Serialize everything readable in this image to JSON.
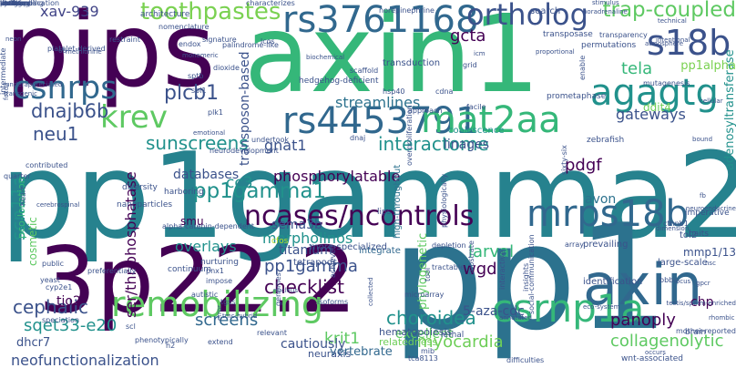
{
  "words": [
    {
      "text": "pp1gamma2",
      "color": "#26828e"
    },
    {
      "text": "pp1",
      "color": "#2c728e"
    },
    {
      "text": "axin1",
      "color": "#35b779"
    },
    {
      "text": "3p22.2",
      "color": "#440154"
    },
    {
      "text": "pips",
      "color": "#440154"
    },
    {
      "text": "rs3761168",
      "color": "#31688e"
    },
    {
      "text": "rs4453791",
      "color": "#31688e"
    },
    {
      "text": "agagtg",
      "color": "#21918c"
    },
    {
      "text": "axin",
      "color": "#31688e"
    },
    {
      "text": "csrnp1a",
      "color": "#35b779"
    },
    {
      "text": "remobilizing",
      "color": "#5ec962"
    },
    {
      "text": "mrps18b",
      "color": "#31688e"
    },
    {
      "text": "mat2aa",
      "color": "#35b779"
    },
    {
      "text": "s18b",
      "color": "#3b528b"
    },
    {
      "text": "ortholog",
      "color": "#3b528b"
    },
    {
      "text": "ncases/ncontrols",
      "color": "#440154"
    },
    {
      "text": "trap-coupled",
      "color": "#5ec962"
    },
    {
      "text": "csnrps",
      "color": "#31688e"
    },
    {
      "text": "toothpastes",
      "color": "#7ad151"
    },
    {
      "text": "krev",
      "color": "#5ec962"
    },
    {
      "text": "dnajb6b",
      "color": "#3b528b"
    },
    {
      "text": "xav-939",
      "color": "#414487"
    },
    {
      "text": "plcb1",
      "color": "#3b528b"
    },
    {
      "text": "pp1gamma1",
      "color": "#21918c"
    },
    {
      "text": "pp1gamma",
      "color": "#3b528b"
    },
    {
      "text": "interactome",
      "color": "#21918c"
    },
    {
      "text": "gcta",
      "color": "#440154"
    },
    {
      "text": "tela",
      "color": "#35b779"
    },
    {
      "text": "gateways",
      "color": "#3b528b"
    },
    {
      "text": "streamlines",
      "color": "#2c728e"
    },
    {
      "text": "sunscreens",
      "color": "#21918c"
    },
    {
      "text": "neu1",
      "color": "#3b528b"
    },
    {
      "text": "gnat1",
      "color": "#3b528b"
    },
    {
      "text": "linages",
      "color": "#3b528b"
    },
    {
      "text": "pdgf",
      "color": "#440154"
    },
    {
      "text": "cc3",
      "color": "#21918c"
    },
    {
      "text": "transposon-based",
      "color": "#3b528b"
    },
    {
      "text": "phosphorylatable",
      "color": "#440154"
    },
    {
      "text": "databases",
      "color": "#3b528b"
    },
    {
      "text": "checklist",
      "color": "#440154"
    },
    {
      "text": "morpholinos",
      "color": "#21918c"
    },
    {
      "text": "larval",
      "color": "#35b779"
    },
    {
      "text": "wgd",
      "color": "#440154"
    },
    {
      "text": "cephalic",
      "color": "#3b528b"
    },
    {
      "text": "sqet33-e20",
      "color": "#21918c"
    },
    {
      "text": "screens",
      "color": "#31688e"
    },
    {
      "text": "choroidea",
      "color": "#21918c"
    },
    {
      "text": "myocardia",
      "color": "#6ece58"
    },
    {
      "text": "collagenolytic",
      "color": "#5ec962"
    },
    {
      "text": "panoply",
      "color": "#440154"
    },
    {
      "text": "krit1",
      "color": "#5ec962"
    },
    {
      "text": "neofunctionalization",
      "color": "#3b528b"
    },
    {
      "text": "scn11a",
      "color": "#21918c"
    },
    {
      "text": "overlays",
      "color": "#21918c"
    },
    {
      "text": "ser/thr-phosphatase",
      "color": "#440154"
    },
    {
      "text": "sema3b",
      "color": "#3b528b"
    },
    {
      "text": "titanium",
      "color": "#3b528b"
    },
    {
      "text": "avon",
      "color": "#2c728e"
    },
    {
      "text": "adenosyltransferase",
      "color": "#21918c"
    },
    {
      "text": "excellent",
      "color": "#5ec962"
    },
    {
      "text": "cautiously",
      "color": "#3b528b"
    },
    {
      "text": "vertebrate",
      "color": "#31688e"
    },
    {
      "text": "5-aza-cdc",
      "color": "#3b528b"
    },
    {
      "text": "chp",
      "color": "#440154"
    },
    {
      "text": "mmp1/13",
      "color": "#3b528b"
    },
    {
      "text": "phylogenetic",
      "color": "#5ec962"
    },
    {
      "text": "smu",
      "color": "#440154"
    },
    {
      "text": "tio2",
      "color": "#440154"
    },
    {
      "text": "dhcr7",
      "color": "#3b528b"
    },
    {
      "text": "pco-location",
      "color": "#35b779"
    },
    {
      "text": "cosmetic",
      "color": "#5ec962"
    },
    {
      "text": "pp1alpha",
      "color": "#7ad151"
    },
    {
      "text": "ddit4",
      "color": "#6ece58"
    },
    {
      "text": "hematopoiesis",
      "color": "#3b528b"
    },
    {
      "text": "relatedness",
      "color": "#6ece58"
    },
    {
      "text": "neuraxis",
      "color": "#3b528b"
    },
    {
      "text": "transduction",
      "color": "#3b528b"
    },
    {
      "text": "coalescence",
      "color": "#21918c"
    },
    {
      "text": "high-throughput",
      "color": "#2c728e"
    },
    {
      "text": "search",
      "color": "#3b528b"
    },
    {
      "text": "tol2",
      "color": "#3b528b"
    },
    {
      "text": "prevailing",
      "color": "#3b528b"
    },
    {
      "text": "identification",
      "color": "#3b528b"
    },
    {
      "text": "integrate",
      "color": "#31688e"
    },
    {
      "text": "tetrapods",
      "color": "#3b528b"
    },
    {
      "text": "lethal",
      "color": "#3b528b"
    },
    {
      "text": "cfos",
      "color": "#b5de2b"
    },
    {
      "text": "more-specialized",
      "color": "#3b528b"
    },
    {
      "text": "lips",
      "color": "#3b528b"
    },
    {
      "text": "nurturing",
      "color": "#3b528b"
    },
    {
      "text": "continuum",
      "color": "#3b528b"
    },
    {
      "text": "diversity",
      "color": "#3b528b"
    },
    {
      "text": "nanoparticles",
      "color": "#3b528b"
    },
    {
      "text": "harboring",
      "color": "#3b528b"
    },
    {
      "text": "architecture",
      "color": "#3b528b"
    },
    {
      "text": "nomenclature",
      "color": "#3b528b"
    },
    {
      "text": "endox",
      "color": "#3b528b"
    },
    {
      "text": "signature",
      "color": "#3b528b"
    },
    {
      "text": "hedgehog-deficient",
      "color": "#3b528b"
    },
    {
      "text": "hsp40",
      "color": "#3b528b"
    },
    {
      "text": "cdna",
      "color": "#3b528b"
    },
    {
      "text": "approach",
      "color": "#3b528b"
    },
    {
      "text": "isoforms",
      "color": "#3b528b"
    },
    {
      "text": "insights",
      "color": "#3b528b"
    },
    {
      "text": "microarray",
      "color": "#3b528b"
    },
    {
      "text": "substrate",
      "color": "#3b528b"
    },
    {
      "text": "large-scale",
      "color": "#3b528b"
    },
    {
      "text": "imperative",
      "color": "#3b528b"
    },
    {
      "text": "baits",
      "color": "#3b528b"
    },
    {
      "text": "brain",
      "color": "#3b528b"
    },
    {
      "text": "zebrafish",
      "color": "#3b528b"
    },
    {
      "text": "permutations",
      "color": "#3b528b"
    },
    {
      "text": "transparency",
      "color": "#3b528b"
    },
    {
      "text": "transposase",
      "color": "#3b528b"
    },
    {
      "text": "prometaphase",
      "color": "#3b528b"
    },
    {
      "text": "facile",
      "color": "#3b528b"
    },
    {
      "text": "enable",
      "color": "#3b528b"
    },
    {
      "text": "sixty-six",
      "color": "#3b528b"
    },
    {
      "text": "overproliferation",
      "color": "#3b528b"
    },
    {
      "text": "depletion",
      "color": "#3b528b"
    },
    {
      "text": "tractable",
      "color": "#3b528b"
    },
    {
      "text": "physiologically",
      "color": "#3b528b"
    },
    {
      "text": "social-communication",
      "color": "#3b528b"
    },
    {
      "text": "wnt-associated",
      "color": "#3b528b"
    },
    {
      "text": "difficulties",
      "color": "#3b528b"
    },
    {
      "text": "tca8113",
      "color": "#3b528b"
    },
    {
      "text": "preferentially",
      "color": "#3b528b"
    },
    {
      "text": "speciation",
      "color": "#3b528b"
    },
    {
      "text": "public",
      "color": "#3b528b"
    },
    {
      "text": "yeast",
      "color": "#3b528b"
    },
    {
      "text": "cyp2e1",
      "color": "#3b528b"
    },
    {
      "text": "autistic",
      "color": "#3b528b"
    },
    {
      "text": "extend",
      "color": "#3b528b"
    },
    {
      "text": "relevant",
      "color": "#3b528b"
    },
    {
      "text": "h2",
      "color": "#3b528b"
    },
    {
      "text": "phenotypically",
      "color": "#3b528b"
    },
    {
      "text": "quarter",
      "color": "#3b528b"
    },
    {
      "text": "contributed",
      "color": "#3b528b"
    },
    {
      "text": "neurodevelopment",
      "color": "#3b528b"
    },
    {
      "text": "undertook",
      "color": "#3b528b"
    },
    {
      "text": "tgss",
      "color": "#3b528b"
    },
    {
      "text": "intermediate",
      "color": "#3b528b"
    },
    {
      "text": "underappreciated",
      "color": "#3b528b"
    },
    {
      "text": "platelet-derived",
      "color": "#3b528b"
    },
    {
      "text": "foxd3",
      "color": "#3b528b"
    },
    {
      "text": "transgenic",
      "color": "#3b528b"
    },
    {
      "text": "dioxide",
      "color": "#3b528b"
    },
    {
      "text": "palindrome-like",
      "color": "#3b528b"
    },
    {
      "text": "characterizes",
      "color": "#3b528b"
    },
    {
      "text": "stimulus",
      "color": "#3b528b"
    },
    {
      "text": "noradrenaline",
      "color": "#3b528b"
    },
    {
      "text": "restraint",
      "color": "#3b528b"
    },
    {
      "text": "alpha-catenin-dependent",
      "color": "#3b528b"
    },
    {
      "text": "spi1",
      "color": "#3b528b"
    },
    {
      "text": "6b",
      "color": "#3b528b"
    },
    {
      "text": "neon",
      "color": "#3b528b"
    },
    {
      "text": "vector",
      "color": "#3b528b"
    },
    {
      "text": "genomes",
      "color": "#3b528b"
    },
    {
      "text": "scl",
      "color": "#3b528b"
    },
    {
      "text": "sptb",
      "color": "#3b528b"
    },
    {
      "text": "plk1",
      "color": "#3b528b"
    },
    {
      "text": "mib",
      "color": "#3b528b"
    },
    {
      "text": "grid",
      "color": "#3b528b"
    },
    {
      "text": "tool",
      "color": "#3b528b"
    },
    {
      "text": "bbb",
      "color": "#3b528b"
    },
    {
      "text": "ctnnb1",
      "color": "#3b528b"
    },
    {
      "text": "array",
      "color": "#3b528b"
    },
    {
      "text": "occurs",
      "color": "#3b528b"
    },
    {
      "text": "interactive",
      "color": "#3b528b"
    },
    {
      "text": "norepinephrine",
      "color": "#3b528b"
    },
    {
      "text": "icm",
      "color": "#3b528b"
    },
    {
      "text": "achieved",
      "color": "#3b528b"
    },
    {
      "text": "mutagenesis",
      "color": "#3b528b"
    },
    {
      "text": "mother-reported",
      "color": "#3b528b"
    },
    {
      "text": "heart",
      "color": "#3b528b"
    },
    {
      "text": "atmosphere",
      "color": "#3b528b"
    },
    {
      "text": "cerebrospinal",
      "color": "#3b528b"
    },
    {
      "text": "collected",
      "color": "#3b528b"
    },
    {
      "text": "scaffold",
      "color": "#3b528b"
    },
    {
      "text": "methionine",
      "color": "#3b528b"
    },
    {
      "text": "dnaj",
      "color": "#3b528b"
    },
    {
      "text": "pnx1",
      "color": "#3b528b"
    },
    {
      "text": "annotated",
      "color": "#3b528b"
    },
    {
      "text": "impose",
      "color": "#3b528b"
    },
    {
      "text": "error",
      "color": "#3b528b"
    },
    {
      "text": "tmc-hybrid",
      "color": "#3b528b"
    },
    {
      "text": "nucleus",
      "color": "#3b528b"
    },
    {
      "text": "technical",
      "color": "#3b528b"
    },
    {
      "text": "nsc",
      "color": "#3b528b"
    },
    {
      "text": "bound",
      "color": "#3b528b"
    },
    {
      "text": "dimension",
      "color": "#3b528b"
    },
    {
      "text": "fb",
      "color": "#3b528b"
    },
    {
      "text": "lcos",
      "color": "#3b528b"
    },
    {
      "text": "biochemical",
      "color": "#3b528b"
    },
    {
      "text": "emotional",
      "color": "#3b528b"
    },
    {
      "text": "proportional",
      "color": "#3b528b"
    },
    {
      "text": "intentional",
      "color": "#3b528b"
    },
    {
      "text": "monomeric",
      "color": "#3b528b"
    },
    {
      "text": "gpcr",
      "color": "#3b528b"
    },
    {
      "text": "locus",
      "color": "#3b528b"
    },
    {
      "text": "cellular",
      "color": "#3b528b"
    },
    {
      "text": "rhombic",
      "color": "#3b528b"
    },
    {
      "text": "testis/sperm-enriched",
      "color": "#3b528b"
    },
    {
      "text": "eco-system",
      "color": "#3b528b"
    },
    {
      "text": "neuroendocrine",
      "color": "#3b528b"
    },
    {
      "text": "lineage",
      "color": "#3b528b"
    },
    {
      "text": "data-application",
      "color": "#3b528b"
    },
    {
      "text": "nuclei",
      "color": "#3b528b"
    },
    {
      "text": "cre",
      "color": "#3b528b"
    },
    {
      "text": "syntheses",
      "color": "#3b528b"
    },
    {
      "text": "perform",
      "color": "#3b528b"
    },
    {
      "text": "wolf",
      "color": "#3b528b"
    },
    {
      "text": "cases",
      "color": "#3b528b"
    },
    {
      "text": "aberrant",
      "color": "#3b528b"
    },
    {
      "text": "imaging",
      "color": "#3b528b"
    },
    {
      "text": "surrounding",
      "color": "#3b528b"
    }
  ]
}
